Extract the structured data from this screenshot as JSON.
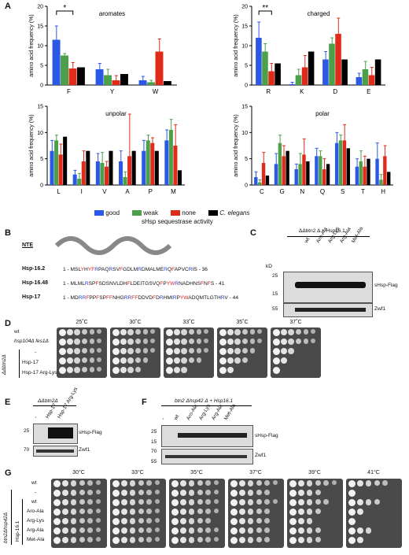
{
  "panels": {
    "A": "A",
    "B": "B",
    "C": "C",
    "D": "D",
    "E": "E",
    "F": "F",
    "G": "G"
  },
  "colors": {
    "good": "#2b59e6",
    "weak": "#4ca04a",
    "none": "#e02a1a",
    "celegans": "#000000"
  },
  "chart_data": [
    {
      "type": "bar",
      "title": "aromates",
      "ylabel": "amino acid frequency (%)",
      "ylim": [
        0,
        20
      ],
      "yticks": [
        0,
        5,
        10,
        15,
        20
      ],
      "categories": [
        "F",
        "Y",
        "W"
      ],
      "series": [
        {
          "name": "good",
          "values": [
            11.5,
            4,
            1.2
          ],
          "err": [
            3.5,
            1.5,
            1
          ]
        },
        {
          "name": "weak",
          "values": [
            7.5,
            2.5,
            0.7
          ],
          "err": [
            0.5,
            1.5,
            0.5
          ]
        },
        {
          "name": "none",
          "values": [
            4.2,
            1.2,
            8.5
          ],
          "err": [
            1.5,
            1.2,
            3.2
          ]
        },
        {
          "name": "C. elegans",
          "values": [
            4.5,
            2.8,
            1.0
          ],
          "err": [
            0,
            0,
            0
          ]
        }
      ],
      "annotation": "*"
    },
    {
      "type": "bar",
      "title": "charged",
      "ylabel": "amino acid frequency (%)",
      "ylim": [
        0,
        20
      ],
      "yticks": [
        0,
        5,
        10,
        15,
        20
      ],
      "categories": [
        "R",
        "K",
        "D",
        "E"
      ],
      "series": [
        {
          "name": "good",
          "values": [
            12,
            0.2,
            6.5,
            2
          ],
          "err": [
            4,
            0.5,
            2,
            1
          ]
        },
        {
          "name": "weak",
          "values": [
            8.5,
            2.5,
            10.5,
            4
          ],
          "err": [
            2,
            1.5,
            1.5,
            2
          ]
        },
        {
          "name": "none",
          "values": [
            3.5,
            4.5,
            13,
            2.5
          ],
          "err": [
            2,
            3,
            4,
            2
          ]
        },
        {
          "name": "C. elegans",
          "values": [
            5.5,
            8.5,
            6.5,
            6.5
          ],
          "err": [
            0,
            0,
            0,
            0
          ]
        }
      ],
      "annotation": "**"
    },
    {
      "type": "bar",
      "title": "unpolar",
      "ylabel": "amino acid frequency (%)",
      "ylim": [
        0,
        15
      ],
      "yticks": [
        0,
        5,
        10,
        15
      ],
      "categories": [
        "L",
        "I",
        "V",
        "A",
        "P",
        "M"
      ],
      "series": [
        {
          "name": "good",
          "values": [
            6.5,
            2,
            4.5,
            4.5,
            6.5,
            8.5
          ],
          "err": [
            2,
            0.8,
            1.5,
            2,
            2,
            2
          ]
        },
        {
          "name": "weak",
          "values": [
            8.5,
            1.2,
            4.2,
            1.5,
            8.5,
            10.5
          ],
          "err": [
            1,
            1,
            2,
            1,
            1,
            2
          ]
        },
        {
          "name": "none",
          "values": [
            5.8,
            4.5,
            3.5,
            5.5,
            8,
            7.5
          ],
          "err": [
            2,
            2,
            1,
            8,
            1,
            4
          ]
        },
        {
          "name": "C. elegans",
          "values": [
            9.2,
            6.5,
            6.5,
            6.5,
            6.5,
            2.8
          ],
          "err": [
            0,
            0,
            0,
            0,
            0,
            0
          ]
        }
      ],
      "annotation": ""
    },
    {
      "type": "bar",
      "title": "polar",
      "ylabel": "amino acid frequency (%)",
      "ylim": [
        0,
        15
      ],
      "yticks": [
        0,
        5,
        10,
        15
      ],
      "categories": [
        "C",
        "G",
        "N",
        "Q",
        "S",
        "T",
        "H"
      ],
      "series": [
        {
          "name": "good",
          "values": [
            1.5,
            4,
            3,
            5.5,
            8,
            3.5,
            5
          ],
          "err": [
            1,
            2,
            1,
            1.5,
            2,
            1.5,
            3
          ]
        },
        {
          "name": "weak",
          "values": [
            0.5,
            8,
            4,
            5.5,
            8.5,
            4.5,
            1
          ],
          "err": [
            0.5,
            1.5,
            2,
            1,
            1,
            2,
            1
          ]
        },
        {
          "name": "none",
          "values": [
            4.2,
            5.5,
            5.8,
            3,
            8.5,
            3.5,
            5.5
          ],
          "err": [
            2,
            2,
            3,
            2,
            3,
            2,
            2
          ]
        },
        {
          "name": "C. elegans",
          "values": [
            1.8,
            6.5,
            4.5,
            4,
            7,
            5,
            2.5
          ],
          "err": [
            0,
            0,
            0,
            0,
            0,
            0,
            0
          ]
        }
      ],
      "annotation": ""
    }
  ],
  "legend": {
    "items": [
      {
        "name": "good"
      },
      {
        "name": "weak"
      },
      {
        "name": "none"
      },
      {
        "name": "C. elegans"
      }
    ],
    "title": "sHsp sequestrase activity"
  },
  "panelB": {
    "nte": "NTE",
    "rows": [
      {
        "name": "Hsp-16.2",
        "prefix": "1 - ",
        "seq": "MSLYHYFRPAQRSVFGDLMRDMALMERQFAPVCRIS",
        "suffix": " - 36"
      },
      {
        "name": "Hsp-16.48",
        "prefix": "1 - ",
        "seq": "MLMLRSPFSDSNVLDHFLDEITGSVQFPYWRNADHNSFNFS",
        "suffix": " - 41"
      },
      {
        "name": "Hsp-17",
        "prefix": "1 - ",
        "seq": "MDRRFPPFSPFFNHGRRFFDDVDFDRHMIRPYWADQMTLGTHRV",
        "suffix": " - 44"
      }
    ]
  },
  "panelC": {
    "header": "ΔΔbtn2 Δ + Hsp16.1",
    "kd": "kD",
    "lanes": [
      "wt",
      "Aro-Ala",
      "Arg-Lys",
      "Arg-Ala",
      "Met-Ala"
    ],
    "markers": [
      "25",
      "15",
      "55"
    ],
    "band1": "sHsp-Flag",
    "band2": "Zwf1"
  },
  "panelD": {
    "temps": [
      "25˚C",
      "30˚C",
      "33˚C",
      "35˚C",
      "37˚C"
    ],
    "rows": [
      "wt",
      "hsp104Δ fes1Δ",
      "-",
      "Hsp-17",
      "Hsp-17 Arg-Lys"
    ],
    "bracket": "ΔΔbtn2Δ"
  },
  "panelE": {
    "header": "ΔΔbtn2Δ",
    "lanes": [
      "-",
      "Hsp-17",
      "Hsp-17 Arg-Lys"
    ],
    "markers": [
      "25",
      "70"
    ],
    "band1": "sHsp-Flag",
    "band2": "Zwf1"
  },
  "panelF": {
    "header": "btn2 Δhsp42 Δ + Hsp16.1",
    "lanes": [
      "-",
      "wt",
      "Aro-Ala",
      "Arg-Lys",
      "Arg-Ala",
      "Met-Ala"
    ],
    "markers": [
      "25",
      "15",
      "70",
      "55"
    ],
    "band1": "sHsp-Flag",
    "band2": "Zwf1"
  },
  "panelG": {
    "temps": [
      "30°C",
      "33°C",
      "35°C",
      "37°C",
      "39°C",
      "41°C"
    ],
    "rows": [
      "wt",
      "-",
      "wt",
      "Aro-Ala",
      "Arg-Lys",
      "Arg-Ala",
      "Met-Ala"
    ],
    "bracket1": "btn2Δhsp42Δ",
    "bracket2": "Hsp-16.1"
  }
}
